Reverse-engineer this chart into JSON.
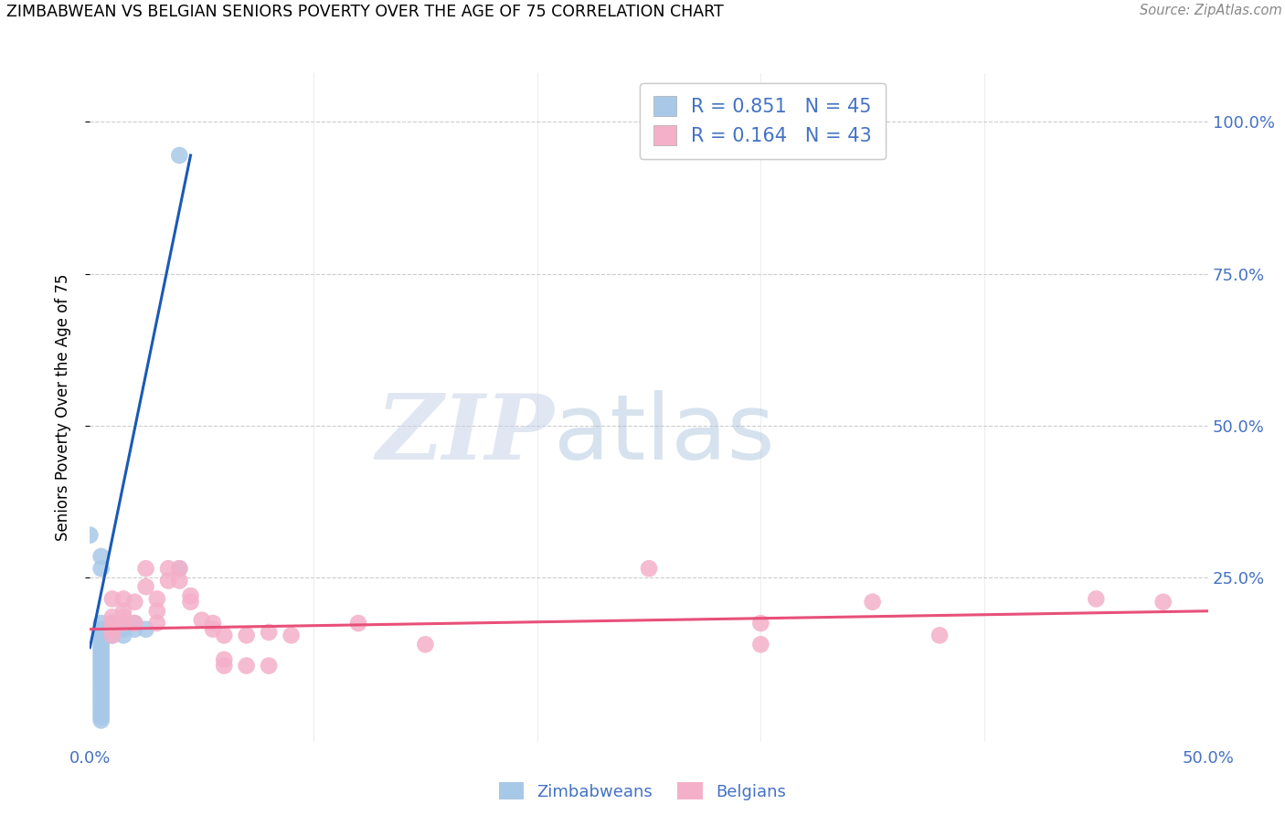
{
  "title": "ZIMBABWEAN VS BELGIAN SENIORS POVERTY OVER THE AGE OF 75 CORRELATION CHART",
  "source": "Source: ZipAtlas.com",
  "ylabel": "Seniors Poverty Over the Age of 75",
  "xlim": [
    0.0,
    0.5
  ],
  "ylim": [
    -0.02,
    1.08
  ],
  "plot_ylim": [
    0.0,
    1.05
  ],
  "zim_color": "#a8c8e8",
  "bel_color": "#f4b0c8",
  "zim_line_color": "#1a5ab5",
  "bel_line_color": "#e8507a",
  "background_color": "#ffffff",
  "grid_color": "#cccccc",
  "tick_color": "#4472c4",
  "zim_points": [
    [
      0.0,
      0.32
    ],
    [
      0.005,
      0.285
    ],
    [
      0.005,
      0.265
    ],
    [
      0.005,
      0.175
    ],
    [
      0.005,
      0.165
    ],
    [
      0.005,
      0.16
    ],
    [
      0.005,
      0.155
    ],
    [
      0.005,
      0.15
    ],
    [
      0.005,
      0.145
    ],
    [
      0.005,
      0.14
    ],
    [
      0.005,
      0.135
    ],
    [
      0.005,
      0.13
    ],
    [
      0.005,
      0.125
    ],
    [
      0.005,
      0.12
    ],
    [
      0.005,
      0.115
    ],
    [
      0.005,
      0.11
    ],
    [
      0.005,
      0.105
    ],
    [
      0.005,
      0.1
    ],
    [
      0.005,
      0.095
    ],
    [
      0.005,
      0.09
    ],
    [
      0.005,
      0.085
    ],
    [
      0.005,
      0.08
    ],
    [
      0.005,
      0.075
    ],
    [
      0.005,
      0.07
    ],
    [
      0.005,
      0.065
    ],
    [
      0.005,
      0.06
    ],
    [
      0.005,
      0.055
    ],
    [
      0.005,
      0.05
    ],
    [
      0.005,
      0.045
    ],
    [
      0.005,
      0.04
    ],
    [
      0.005,
      0.035
    ],
    [
      0.005,
      0.03
    ],
    [
      0.005,
      0.025
    ],
    [
      0.005,
      0.02
    ],
    [
      0.005,
      0.015
    ],
    [
      0.01,
      0.175
    ],
    [
      0.01,
      0.165
    ],
    [
      0.01,
      0.155
    ],
    [
      0.015,
      0.165
    ],
    [
      0.015,
      0.155
    ],
    [
      0.02,
      0.175
    ],
    [
      0.025,
      0.165
    ],
    [
      0.02,
      0.165
    ],
    [
      0.04,
      0.265
    ],
    [
      0.04,
      0.945
    ]
  ],
  "bel_points": [
    [
      0.01,
      0.215
    ],
    [
      0.01,
      0.185
    ],
    [
      0.01,
      0.175
    ],
    [
      0.01,
      0.165
    ],
    [
      0.01,
      0.155
    ],
    [
      0.015,
      0.215
    ],
    [
      0.015,
      0.195
    ],
    [
      0.015,
      0.185
    ],
    [
      0.015,
      0.175
    ],
    [
      0.02,
      0.21
    ],
    [
      0.02,
      0.175
    ],
    [
      0.025,
      0.265
    ],
    [
      0.025,
      0.235
    ],
    [
      0.03,
      0.215
    ],
    [
      0.03,
      0.195
    ],
    [
      0.03,
      0.175
    ],
    [
      0.035,
      0.265
    ],
    [
      0.035,
      0.245
    ],
    [
      0.04,
      0.265
    ],
    [
      0.04,
      0.245
    ],
    [
      0.045,
      0.22
    ],
    [
      0.045,
      0.21
    ],
    [
      0.05,
      0.18
    ],
    [
      0.055,
      0.175
    ],
    [
      0.055,
      0.165
    ],
    [
      0.06,
      0.155
    ],
    [
      0.06,
      0.115
    ],
    [
      0.06,
      0.105
    ],
    [
      0.07,
      0.155
    ],
    [
      0.07,
      0.105
    ],
    [
      0.08,
      0.16
    ],
    [
      0.08,
      0.105
    ],
    [
      0.09,
      0.155
    ],
    [
      0.12,
      0.175
    ],
    [
      0.15,
      0.14
    ],
    [
      0.25,
      0.265
    ],
    [
      0.3,
      0.175
    ],
    [
      0.3,
      0.14
    ],
    [
      0.35,
      0.21
    ],
    [
      0.38,
      0.155
    ],
    [
      0.45,
      0.215
    ],
    [
      0.48,
      0.21
    ]
  ],
  "zim_trendline_x": [
    0.0,
    0.045
  ],
  "zim_trendline_y": [
    0.135,
    0.945
  ],
  "bel_trendline_x": [
    0.0,
    0.5
  ],
  "bel_trendline_y": [
    0.165,
    0.195
  ]
}
